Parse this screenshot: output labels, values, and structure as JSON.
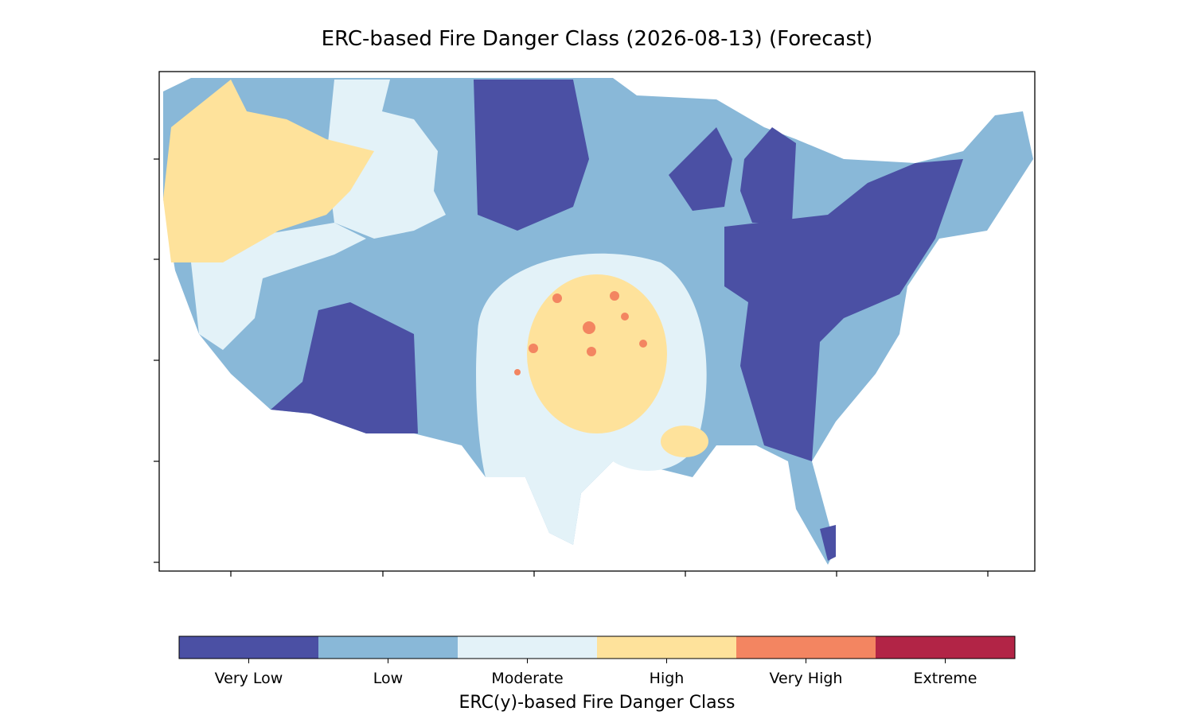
{
  "title": "ERC-based Fire Danger Class (2026-08-13) (Forecast)",
  "colorbar": {
    "label": "ERC(y)-based Fire Danger Class",
    "classes": [
      {
        "name": "Very Low",
        "color": "#4b50a4"
      },
      {
        "name": "Low",
        "color": "#89b8d8"
      },
      {
        "name": "Moderate",
        "color": "#e3f2f8"
      },
      {
        "name": "High",
        "color": "#fee29b"
      },
      {
        "name": "Very High",
        "color": "#f38561"
      },
      {
        "name": "Extreme",
        "color": "#b22446"
      }
    ]
  }
}
